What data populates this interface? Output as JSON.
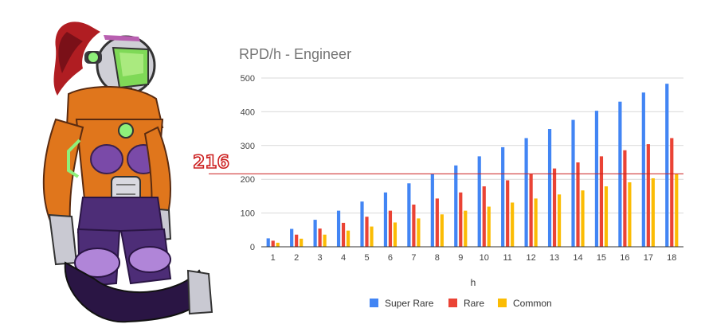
{
  "chart_data": {
    "type": "bar",
    "title": "RPD/h - Engineer",
    "xlabel": "h",
    "ylabel": "",
    "categories": [
      "1",
      "2",
      "3",
      "4",
      "5",
      "6",
      "7",
      "8",
      "9",
      "10",
      "11",
      "12",
      "13",
      "14",
      "15",
      "16",
      "17",
      "18"
    ],
    "ylim": [
      0,
      500
    ],
    "yticks": [
      0,
      100,
      200,
      300,
      400,
      500
    ],
    "grid": true,
    "legend_position": "bottom",
    "series": [
      {
        "name": "Super Rare",
        "color": "#4285f4",
        "values": [
          25,
          53,
          80,
          107,
          134,
          161,
          188,
          215,
          241,
          268,
          295,
          322,
          349,
          376,
          403,
          430,
          457,
          483
        ]
      },
      {
        "name": "Rare",
        "color": "#ea4335",
        "values": [
          18,
          36,
          54,
          71,
          89,
          107,
          125,
          143,
          161,
          179,
          197,
          215,
          232,
          250,
          268,
          286,
          304,
          322
        ]
      },
      {
        "name": "Common",
        "color": "#fbbc04",
        "values": [
          12,
          24,
          36,
          48,
          60,
          72,
          84,
          96,
          107,
          119,
          131,
          143,
          155,
          167,
          179,
          191,
          203,
          215
        ]
      }
    ],
    "reference_line": {
      "value": 216,
      "label": "216",
      "color": "#cc1f1f"
    }
  },
  "illustration": {
    "subject": "armored-engineer-character",
    "hair_color": "#b01d22",
    "armor_color": "#e0761c",
    "suit_color": "#4d2d77"
  }
}
